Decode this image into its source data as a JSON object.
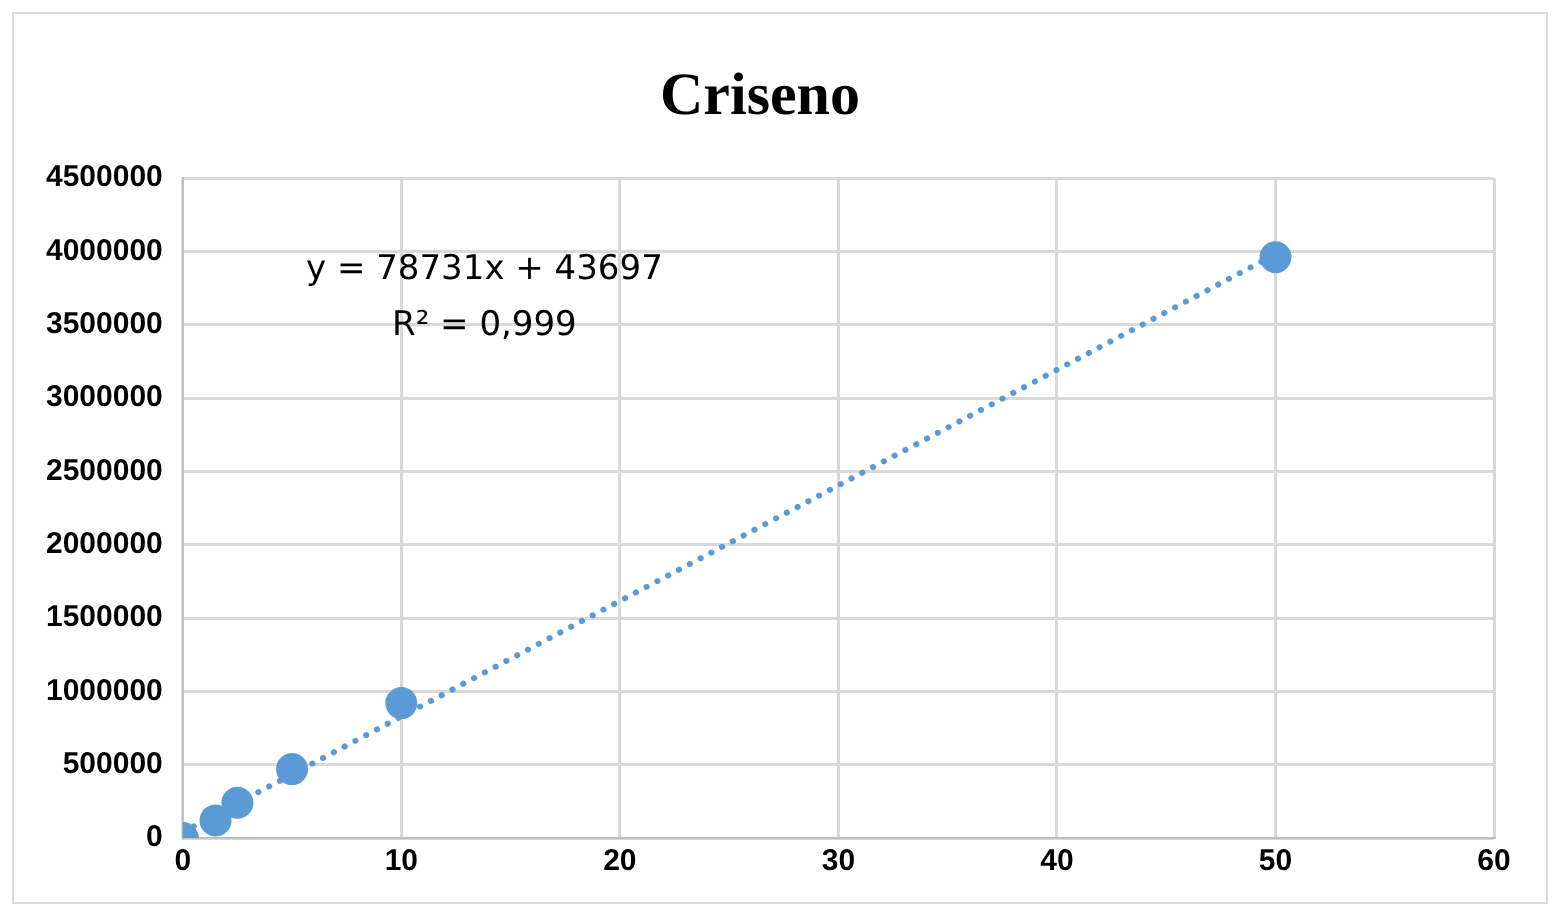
{
  "chart_data": {
    "type": "scatter",
    "title": "Criseno",
    "series": [
      {
        "color": "#5b9bd5",
        "x": [
          0,
          1.5,
          2.5,
          5,
          10,
          50
        ],
        "values": [
          0,
          120000,
          240000,
          470000,
          920000,
          3960000
        ],
        "marker": "circle"
      },
      {
        "type": "line",
        "color": "#5b9bd5",
        "x": [
          0,
          50
        ],
        "values": [
          40000,
          3980000
        ],
        "line_style": "dotted",
        "marker": "none"
      }
    ],
    "xlim": [
      0,
      60
    ],
    "xticks": [
      0,
      10,
      20,
      30,
      40,
      50,
      60
    ],
    "ylim": [
      0,
      4500000
    ],
    "yticks": [
      0,
      500000,
      1000000,
      1500000,
      2000000,
      2500000,
      3000000,
      3500000,
      4000000,
      4500000
    ],
    "grid": true,
    "legend": false,
    "annotations": [
      "y = 78731x + 43697",
      "R² = 0,999"
    ]
  }
}
